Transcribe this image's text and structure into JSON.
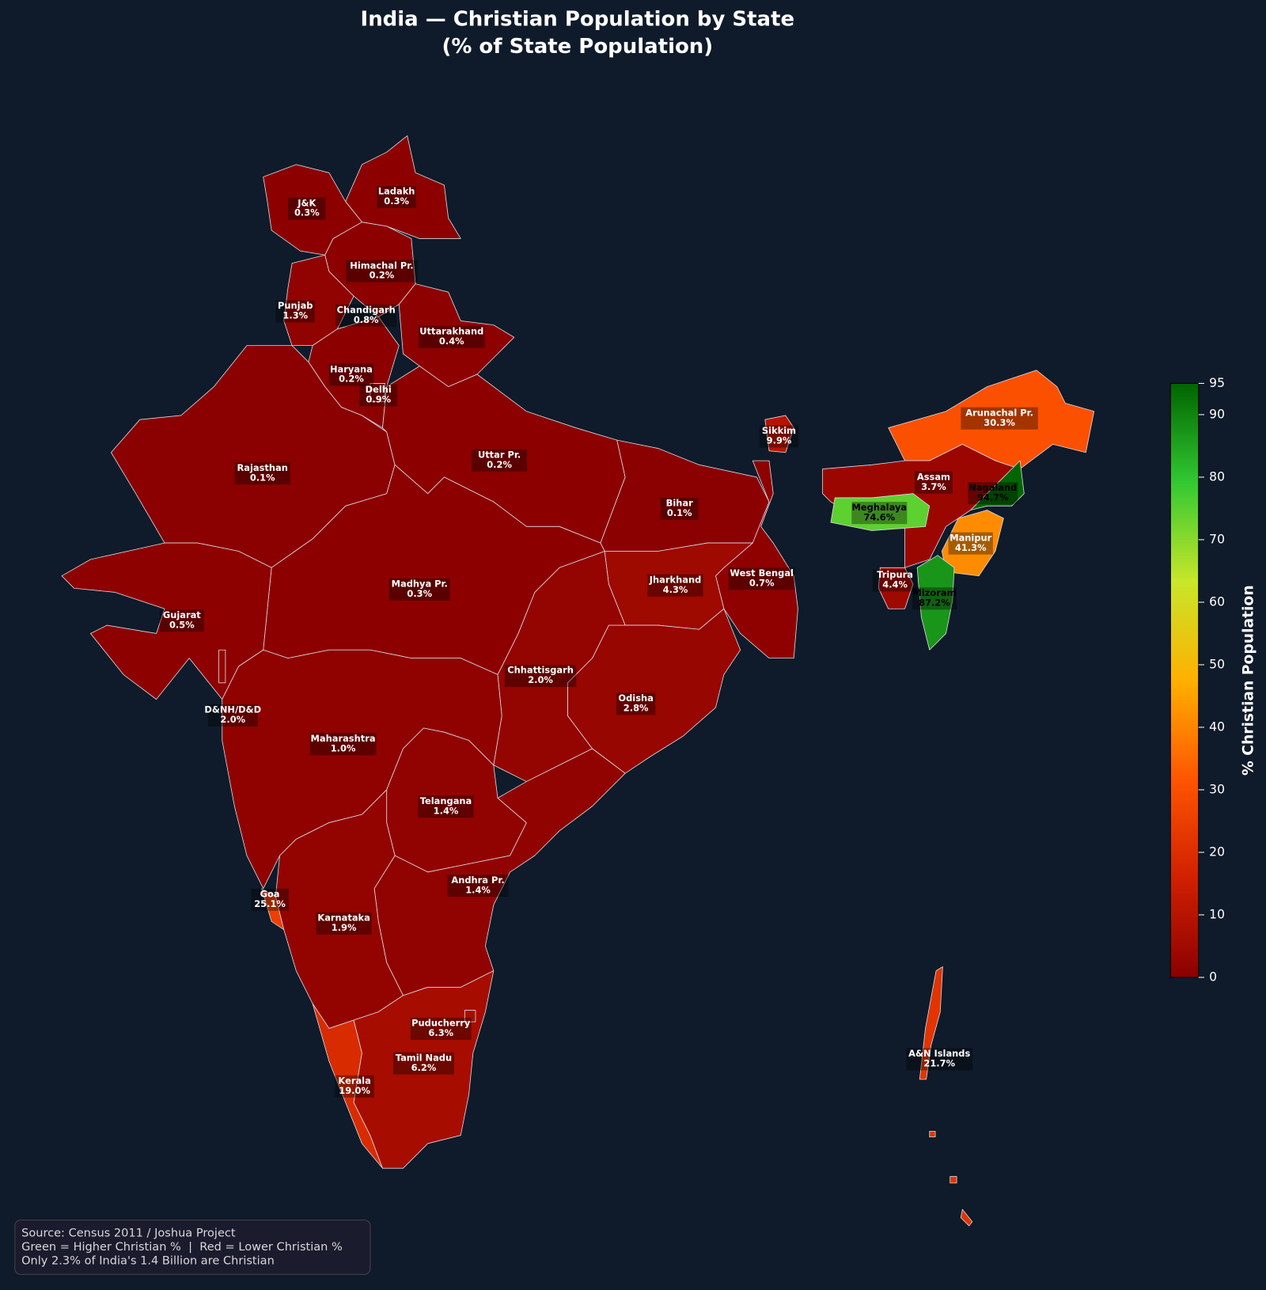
{
  "chart_data": {
    "type": "choropleth",
    "title": "India — Christian Population by State",
    "subtitle": "(% of State Population)",
    "categories": [
      "Ladakh",
      "J&K",
      "Himachal Pr.",
      "Punjab",
      "Chandigarh",
      "Uttarakhand",
      "Haryana",
      "Delhi",
      "Rajasthan",
      "Uttar Pr.",
      "Bihar",
      "Sikkim",
      "West Bengal",
      "Jharkhand",
      "Odisha",
      "Chhattisgarh",
      "Madhya Pr.",
      "Gujarat",
      "D&NH/D&D",
      "Maharashtra",
      "Telangana",
      "Andhra Pr.",
      "Karnataka",
      "Goa",
      "Kerala",
      "Tamil Nadu",
      "Puducherry",
      "Arunachal Pr.",
      "Assam",
      "Nagaland",
      "Meghalaya",
      "Manipur",
      "Mizoram",
      "Tripura",
      "A&N Islands"
    ],
    "values": [
      0.3,
      0.3,
      0.2,
      1.3,
      0.8,
      0.4,
      0.2,
      0.9,
      0.1,
      0.2,
      0.1,
      9.9,
      0.7,
      4.3,
      2.8,
      2.0,
      0.3,
      0.5,
      2.0,
      1.0,
      1.4,
      1.4,
      1.9,
      25.1,
      19.0,
      6.2,
      6.3,
      30.3,
      3.7,
      94.7,
      74.6,
      41.3,
      87.2,
      4.4,
      21.7
    ],
    "value_labels": [
      "0.3%",
      "0.3%",
      "0.2%",
      "1.3%",
      "0.8%",
      "0.4%",
      "0.2%",
      "0.9%",
      "0.1%",
      "0.2%",
      "0.1%",
      "9.9%",
      "0.7%",
      "4.3%",
      "2.8%",
      "2.0%",
      "0.3%",
      "0.5%",
      "2.0%",
      "1.0%",
      "1.4%",
      "1.4%",
      "1.9%",
      "25.1%",
      "19.0%",
      "6.2%",
      "6.3%",
      "30.3%",
      "3.7%",
      "94.7%",
      "74.6%",
      "41.3%",
      "87.2%",
      "4.4%",
      "21.7%"
    ],
    "colormap": [
      "#8b0000",
      "#d02000",
      "#ff5500",
      "#ffb000",
      "#c8e62a",
      "#32c832",
      "#006400"
    ],
    "clim": [
      0,
      95
    ],
    "cticks": [
      0,
      10,
      20,
      30,
      40,
      50,
      60,
      70,
      80,
      90,
      95
    ],
    "colorbar_label": "% Christian Population",
    "notes": [
      "Source: Census 2011 / Joshua Project",
      "Green = Higher Christian %  |  Red = Lower Christian %",
      "Only 2.3% of India's 1.4 Billion are Christian"
    ]
  }
}
